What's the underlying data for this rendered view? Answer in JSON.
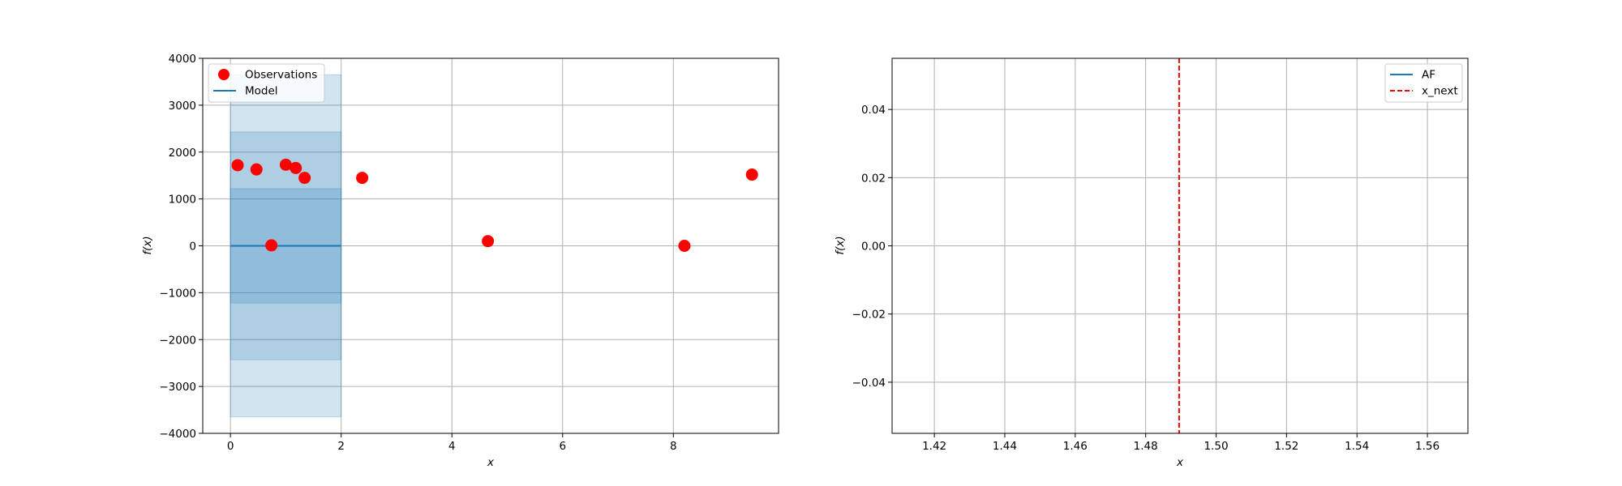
{
  "colors": {
    "observation": "#ff0000",
    "model": "#1f77b4",
    "band": "#1f77b4",
    "af": "#1f77b4",
    "x_next": "#ff0000",
    "grid": "#b0b0b0"
  },
  "chart_data": [
    {
      "type": "scatter",
      "xlabel": "x",
      "ylabel": "f(x)",
      "xlim": [
        -0.5,
        9.9
      ],
      "ylim": [
        -4000,
        4000
      ],
      "xticks": [
        0,
        2,
        4,
        6,
        8
      ],
      "yticks": [
        -4000,
        -3000,
        -2000,
        -1000,
        0,
        1000,
        2000,
        3000,
        4000
      ],
      "xtick_labels": [
        "0",
        "2",
        "4",
        "6",
        "8"
      ],
      "ytick_labels": [
        "−4000",
        "−3000",
        "−2000",
        "−1000",
        "0",
        "1000",
        "2000",
        "3000",
        "4000"
      ],
      "grid": true,
      "legend_position": "upper-left",
      "legend": [
        "Observations",
        "Model"
      ],
      "observations": {
        "name": "Observations",
        "x": [
          0.13,
          0.47,
          0.74,
          1.0,
          1.18,
          1.34,
          2.38,
          4.65,
          8.2,
          9.42
        ],
        "y": [
          1720,
          1630,
          10,
          1730,
          1660,
          1450,
          1450,
          100,
          0,
          1520
        ]
      },
      "model": {
        "name": "Model",
        "x": [
          0,
          2
        ],
        "y": [
          0,
          0
        ]
      },
      "confidence_bands": [
        {
          "x": [
            0,
            2
          ],
          "lower": -1220,
          "upper": 1220
        },
        {
          "x": [
            0,
            2
          ],
          "lower": -2430,
          "upper": 2430
        },
        {
          "x": [
            0,
            2
          ],
          "lower": -3650,
          "upper": 3650
        }
      ]
    },
    {
      "type": "line",
      "xlabel": "x",
      "ylabel": "f(x)",
      "xlim": [
        1.408,
        1.5715
      ],
      "ylim": [
        -0.055,
        0.055
      ],
      "xticks": [
        1.42,
        1.44,
        1.46,
        1.48,
        1.5,
        1.52,
        1.54,
        1.56
      ],
      "yticks": [
        -0.04,
        -0.02,
        0.0,
        0.02,
        0.04
      ],
      "xtick_labels": [
        "1.42",
        "1.44",
        "1.46",
        "1.48",
        "1.50",
        "1.52",
        "1.54",
        "1.56"
      ],
      "ytick_labels": [
        "−0.04",
        "−0.02",
        "0.00",
        "0.02",
        "0.04"
      ],
      "grid": true,
      "legend_position": "upper-right",
      "legend": [
        "AF",
        "x_next"
      ],
      "series": [
        {
          "name": "AF",
          "x": [],
          "y": []
        }
      ],
      "x_next": 1.4895
    }
  ]
}
